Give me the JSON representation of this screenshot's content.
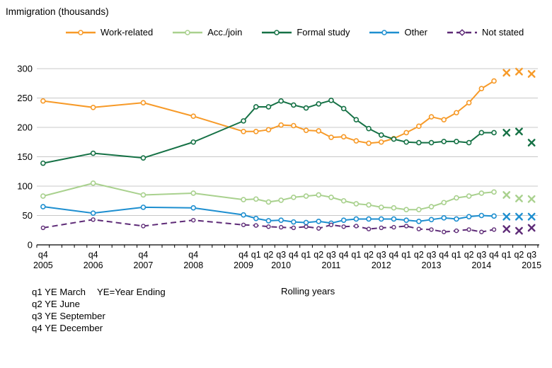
{
  "footnotes": {
    "q1": "q1 YE March",
    "ye_definition": "YE=Year Ending",
    "q2": "q2 YE June",
    "q3": "q3 YE September",
    "q4": "q4 YE December",
    "rolling_years": "Rolling years"
  },
  "chart_data": {
    "type": "line",
    "title": "Immigration (thousands)",
    "ylabel": "Immigration (thousands)",
    "ylim": [
      0,
      300
    ],
    "ytick_step": 50,
    "grid": true,
    "grid_color": "#C8C8C8",
    "axis_color": "#000000",
    "legend_position": "top",
    "x_axis_note": "Rolling years",
    "provisional_last_n": 3,
    "provisional_marker": "x",
    "categories": [
      "2005 q4",
      "2006 q4",
      "2007 q4",
      "2008 q4",
      "2009 q4",
      "2010 q1",
      "2010 q2",
      "2010 q3",
      "2010 q4",
      "2011 q1",
      "2011 q2",
      "2011 q3",
      "2011 q4",
      "2012 q1",
      "2012 q2",
      "2012 q3",
      "2012 q4",
      "2013 q1",
      "2013 q2",
      "2013 q3",
      "2013 q4",
      "2014 q1",
      "2014 q2",
      "2014 q3",
      "2014 q4",
      "2015 q1",
      "2015 q2",
      "2015 q3"
    ],
    "series": [
      {
        "name": "Work-related",
        "color": "#F79A28",
        "dashed": false,
        "marker": "circle",
        "values": [
          245,
          234,
          242,
          219,
          193,
          193,
          196,
          204,
          203,
          195,
          194,
          183,
          184,
          177,
          173,
          175,
          181,
          191,
          202,
          218,
          213,
          225,
          242,
          266,
          279,
          293,
          295,
          291
        ]
      },
      {
        "name": "Acc./join",
        "color": "#A9D18E",
        "dashed": false,
        "marker": "circle",
        "values": [
          83,
          105,
          85,
          88,
          77,
          78,
          73,
          76,
          81,
          83,
          85,
          81,
          75,
          70,
          68,
          64,
          63,
          60,
          60,
          65,
          72,
          80,
          83,
          88,
          90,
          85,
          79,
          78
        ]
      },
      {
        "name": "Formal study",
        "color": "#157145",
        "dashed": false,
        "marker": "circle",
        "values": [
          139,
          156,
          148,
          175,
          211,
          235,
          235,
          245,
          238,
          233,
          240,
          246,
          232,
          213,
          198,
          187,
          180,
          175,
          174,
          174,
          176,
          176,
          174,
          191,
          191,
          191,
          193,
          174
        ]
      },
      {
        "name": "Other",
        "color": "#1E8FD0",
        "dashed": false,
        "marker": "circle",
        "values": [
          65,
          54,
          64,
          63,
          51,
          45,
          41,
          42,
          39,
          38,
          40,
          37,
          42,
          44,
          44,
          44,
          44,
          42,
          40,
          43,
          46,
          44,
          48,
          50,
          49,
          48,
          48,
          48
        ]
      },
      {
        "name": "Not stated",
        "color": "#5E2B77",
        "dashed": true,
        "marker": "circle",
        "values": [
          29,
          43,
          32,
          42,
          34,
          33,
          31,
          30,
          29,
          31,
          28,
          34,
          31,
          32,
          27,
          29,
          30,
          32,
          27,
          26,
          22,
          24,
          26,
          22,
          26,
          27,
          24,
          29
        ]
      }
    ]
  }
}
